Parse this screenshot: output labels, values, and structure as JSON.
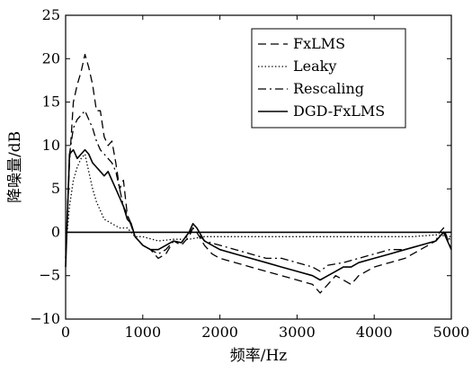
{
  "chart_data": {
    "type": "line",
    "title": "",
    "xlabel": "频率/Hz",
    "ylabel": "降噪量/dB",
    "xlim": [
      0,
      5000
    ],
    "ylim": [
      -10,
      25
    ],
    "xticks": [
      0,
      1000,
      2000,
      3000,
      4000,
      5000
    ],
    "yticks": [
      -10,
      -5,
      0,
      5,
      10,
      15,
      20,
      25
    ],
    "xtick_labels": [
      "0",
      "1000",
      "2000",
      "3000",
      "4000",
      "5000"
    ],
    "ytick_labels": [
      "−10",
      "−5",
      "0",
      "5",
      "10",
      "15",
      "20",
      "25"
    ],
    "grid": false,
    "legend_position": "top-right",
    "zero_line": true,
    "series": [
      {
        "name": "FxLMS",
        "dash": "dashed",
        "points": [
          [
            0,
            -3
          ],
          [
            50,
            8
          ],
          [
            100,
            15
          ],
          [
            150,
            17
          ],
          [
            200,
            18.5
          ],
          [
            250,
            20.5
          ],
          [
            300,
            19
          ],
          [
            350,
            17
          ],
          [
            400,
            14
          ],
          [
            450,
            14
          ],
          [
            500,
            11
          ],
          [
            550,
            10
          ],
          [
            600,
            10.5
          ],
          [
            650,
            8
          ],
          [
            700,
            5
          ],
          [
            750,
            6
          ],
          [
            800,
            2
          ],
          [
            850,
            1
          ],
          [
            900,
            -0.5
          ],
          [
            1000,
            -1.5
          ],
          [
            1100,
            -2
          ],
          [
            1200,
            -3
          ],
          [
            1300,
            -2.5
          ],
          [
            1400,
            -1
          ],
          [
            1500,
            -1.5
          ],
          [
            1600,
            -0.5
          ],
          [
            1650,
            0.5
          ],
          [
            1700,
            0
          ],
          [
            1800,
            -1.5
          ],
          [
            1900,
            -2.5
          ],
          [
            2000,
            -3
          ],
          [
            2200,
            -3.5
          ],
          [
            2400,
            -4
          ],
          [
            2600,
            -4.5
          ],
          [
            2800,
            -5
          ],
          [
            3000,
            -5.5
          ],
          [
            3200,
            -6
          ],
          [
            3300,
            -7
          ],
          [
            3400,
            -6
          ],
          [
            3500,
            -5
          ],
          [
            3600,
            -5.5
          ],
          [
            3700,
            -6
          ],
          [
            3800,
            -5
          ],
          [
            4000,
            -4
          ],
          [
            4200,
            -3.5
          ],
          [
            4400,
            -3
          ],
          [
            4600,
            -2
          ],
          [
            4800,
            -1
          ],
          [
            4850,
            0
          ],
          [
            4900,
            0.5
          ],
          [
            5000,
            -2
          ]
        ]
      },
      {
        "name": "Leaky",
        "dash": "dotted",
        "points": [
          [
            0,
            -2
          ],
          [
            50,
            3
          ],
          [
            100,
            6
          ],
          [
            150,
            7.5
          ],
          [
            200,
            8.5
          ],
          [
            250,
            9
          ],
          [
            300,
            7
          ],
          [
            350,
            5
          ],
          [
            400,
            3.5
          ],
          [
            450,
            2.5
          ],
          [
            500,
            1.5
          ],
          [
            600,
            1
          ],
          [
            700,
            0.5
          ],
          [
            800,
            0.5
          ],
          [
            900,
            -0.5
          ],
          [
            1000,
            -0.5
          ],
          [
            1200,
            -1
          ],
          [
            1400,
            -0.8
          ],
          [
            1600,
            -0.8
          ],
          [
            1800,
            -0.5
          ],
          [
            2000,
            -0.5
          ],
          [
            2500,
            -0.5
          ],
          [
            3000,
            -0.5
          ],
          [
            3500,
            -0.5
          ],
          [
            4000,
            -0.5
          ],
          [
            4500,
            -0.5
          ],
          [
            4800,
            -0.3
          ],
          [
            5000,
            -0.5
          ]
        ]
      },
      {
        "name": "Rescaling",
        "dash": "dashdot",
        "points": [
          [
            0,
            -3
          ],
          [
            50,
            9
          ],
          [
            100,
            12
          ],
          [
            150,
            13
          ],
          [
            200,
            13.5
          ],
          [
            250,
            14
          ],
          [
            300,
            13
          ],
          [
            350,
            12
          ],
          [
            400,
            10.5
          ],
          [
            450,
            9.5
          ],
          [
            500,
            9
          ],
          [
            550,
            8.5
          ],
          [
            600,
            8
          ],
          [
            650,
            7
          ],
          [
            700,
            5
          ],
          [
            750,
            3
          ],
          [
            800,
            2
          ],
          [
            900,
            -0.5
          ],
          [
            1000,
            -1.5
          ],
          [
            1100,
            -2
          ],
          [
            1200,
            -2.5
          ],
          [
            1300,
            -2
          ],
          [
            1400,
            -1
          ],
          [
            1500,
            -1.2
          ],
          [
            1600,
            -0.2
          ],
          [
            1650,
            0.5
          ],
          [
            1700,
            0
          ],
          [
            1800,
            -1
          ],
          [
            2000,
            -1.5
          ],
          [
            2200,
            -2
          ],
          [
            2400,
            -2.5
          ],
          [
            2600,
            -3
          ],
          [
            2800,
            -3
          ],
          [
            3000,
            -3.5
          ],
          [
            3200,
            -4
          ],
          [
            3300,
            -4.5
          ],
          [
            3400,
            -3.8
          ],
          [
            3600,
            -3.5
          ],
          [
            3800,
            -3
          ],
          [
            4000,
            -2.5
          ],
          [
            4200,
            -2
          ],
          [
            4400,
            -2
          ],
          [
            4600,
            -1.5
          ],
          [
            4800,
            -1
          ],
          [
            4900,
            0
          ],
          [
            5000,
            -1
          ]
        ]
      },
      {
        "name": "DGD-FxLMS",
        "dash": "solid",
        "points": [
          [
            0,
            -4
          ],
          [
            50,
            9
          ],
          [
            100,
            9.5
          ],
          [
            150,
            8.5
          ],
          [
            200,
            9
          ],
          [
            250,
            9.5
          ],
          [
            300,
            9
          ],
          [
            350,
            8
          ],
          [
            400,
            7.5
          ],
          [
            450,
            7
          ],
          [
            500,
            6.5
          ],
          [
            550,
            7
          ],
          [
            600,
            6
          ],
          [
            650,
            5
          ],
          [
            700,
            4
          ],
          [
            750,
            3
          ],
          [
            800,
            1.5
          ],
          [
            850,
            1
          ],
          [
            900,
            -0.5
          ],
          [
            1000,
            -1.5
          ],
          [
            1100,
            -2
          ],
          [
            1200,
            -2
          ],
          [
            1300,
            -1.5
          ],
          [
            1400,
            -1
          ],
          [
            1500,
            -1.2
          ],
          [
            1600,
            0
          ],
          [
            1650,
            1
          ],
          [
            1700,
            0.5
          ],
          [
            1800,
            -1
          ],
          [
            1900,
            -1.5
          ],
          [
            2000,
            -2
          ],
          [
            2200,
            -2.5
          ],
          [
            2400,
            -3
          ],
          [
            2600,
            -3.5
          ],
          [
            2800,
            -4
          ],
          [
            3000,
            -4.5
          ],
          [
            3200,
            -5
          ],
          [
            3300,
            -5.5
          ],
          [
            3400,
            -5
          ],
          [
            3500,
            -4.5
          ],
          [
            3600,
            -4
          ],
          [
            3700,
            -4
          ],
          [
            3800,
            -3.5
          ],
          [
            4000,
            -3
          ],
          [
            4200,
            -2.5
          ],
          [
            4400,
            -2
          ],
          [
            4600,
            -1.5
          ],
          [
            4800,
            -1
          ],
          [
            4900,
            0
          ],
          [
            5000,
            -2
          ]
        ]
      }
    ]
  }
}
